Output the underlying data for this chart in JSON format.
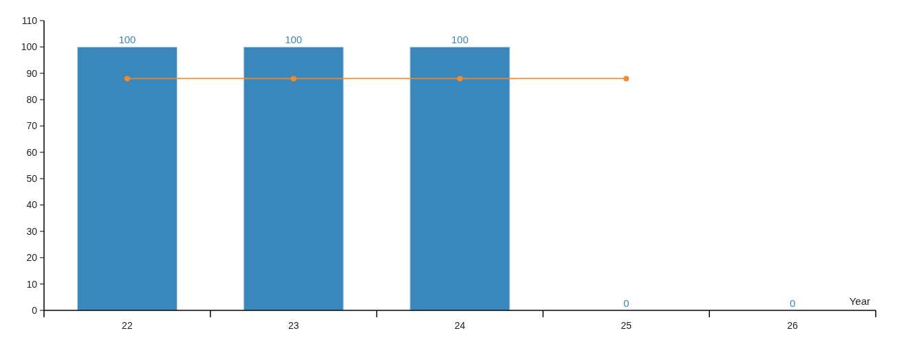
{
  "chart_data": {
    "type": "bar",
    "xlabel": "Year",
    "categories": [
      "22",
      "23",
      "24",
      "25",
      "26"
    ],
    "series": [
      {
        "color": "#3a87bb",
        "values": [
          100,
          100,
          100,
          0,
          0
        ],
        "value_labels": [
          "100",
          "100",
          "100",
          "0",
          "0"
        ]
      },
      {
        "type": "line",
        "color": "#f58a2c",
        "values": [
          88,
          88,
          88,
          88,
          null
        ],
        "marker": "circle"
      }
    ],
    "ylim": [
      0,
      110
    ],
    "yticks": [
      0,
      10,
      20,
      30,
      40,
      50,
      60,
      70,
      80,
      90,
      100,
      110
    ],
    "grid": false
  }
}
